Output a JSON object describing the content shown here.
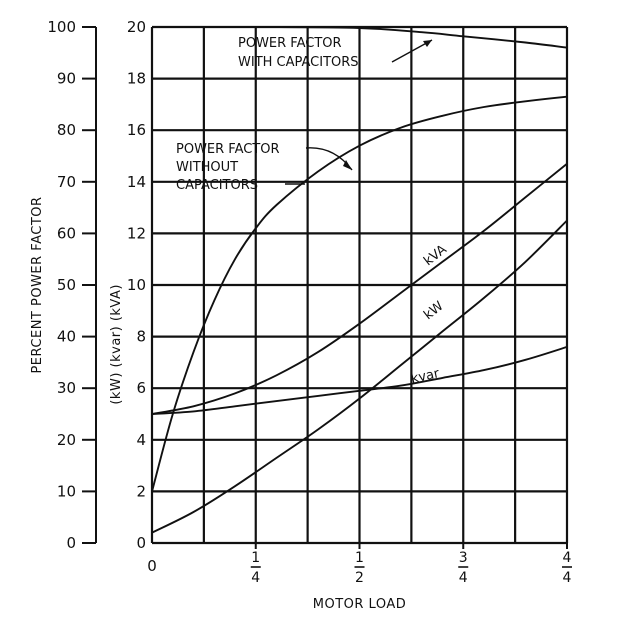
{
  "chart_data": {
    "type": "line",
    "xlabel": "MOTOR LOAD",
    "ylabel_left": "PERCENT POWER FACTOR",
    "ylabel_right": "(kW) (kvar) (kVA)",
    "x_ticks": [
      {
        "value": 0,
        "label": "0"
      },
      {
        "value": 0.25,
        "num": "1",
        "den": "4"
      },
      {
        "value": 0.5,
        "num": "1",
        "den": "2"
      },
      {
        "value": 0.75,
        "num": "3",
        "den": "4"
      },
      {
        "value": 1.0,
        "num": "4",
        "den": "4"
      }
    ],
    "xlim": [
      0,
      1
    ],
    "left_axis": {
      "ylim": [
        0,
        100
      ],
      "ticks": [
        0,
        10,
        20,
        30,
        40,
        50,
        60,
        70,
        80,
        90,
        100
      ]
    },
    "right_axis": {
      "ylim": [
        0,
        20
      ],
      "ticks": [
        0,
        2,
        4,
        6,
        8,
        10,
        12,
        14,
        16,
        18,
        20
      ]
    },
    "grid": true,
    "series": [
      {
        "name": "POWER FACTOR WITH CAPACITORS",
        "axis": "left",
        "x": [
          0,
          0.25,
          0.5,
          0.65,
          0.75,
          0.9,
          1.0
        ],
        "y": [
          100,
          100,
          99.8,
          99,
          98.2,
          97,
          96
        ]
      },
      {
        "name": "POWER FACTOR WITHOUT CAPACITORS",
        "axis": "left",
        "x": [
          0,
          0.05,
          0.1,
          0.15,
          0.2,
          0.25,
          0.3,
          0.4,
          0.5,
          0.6,
          0.7,
          0.8,
          0.9,
          1.0
        ],
        "y": [
          10,
          25,
          37,
          47,
          55,
          61,
          65.5,
          72,
          77,
          80.5,
          82.8,
          84.5,
          85.6,
          86.5
        ]
      },
      {
        "name": "kVA",
        "axis": "right",
        "x": [
          0,
          0.1,
          0.2,
          0.3,
          0.4,
          0.5,
          0.6,
          0.7,
          0.8,
          0.9,
          1.0
        ],
        "y": [
          5.0,
          5.3,
          5.8,
          6.5,
          7.4,
          8.5,
          9.7,
          10.9,
          12.1,
          13.4,
          14.7
        ]
      },
      {
        "name": "kW",
        "axis": "right",
        "x": [
          0,
          0.1,
          0.2,
          0.3,
          0.4,
          0.5,
          0.6,
          0.7,
          0.8,
          0.9,
          1.0
        ],
        "y": [
          0.4,
          1.2,
          2.2,
          3.3,
          4.4,
          5.6,
          6.9,
          8.2,
          9.5,
          10.9,
          12.5
        ]
      },
      {
        "name": "kvar",
        "axis": "right",
        "x": [
          0,
          0.1,
          0.2,
          0.3,
          0.4,
          0.5,
          0.6,
          0.7,
          0.8,
          0.9,
          1.0
        ],
        "y": [
          5.0,
          5.1,
          5.3,
          5.5,
          5.7,
          5.9,
          6.1,
          6.4,
          6.7,
          7.1,
          7.6
        ]
      }
    ],
    "annotations": [
      {
        "lines": [
          "POWER FACTOR",
          "WITH CAPACITORS"
        ]
      },
      {
        "lines": [
          "POWER FACTOR",
          "WITHOUT",
          "CAPACITORS"
        ]
      },
      {
        "text": "kVA"
      },
      {
        "text": "kW"
      },
      {
        "text": "kvar"
      }
    ]
  }
}
